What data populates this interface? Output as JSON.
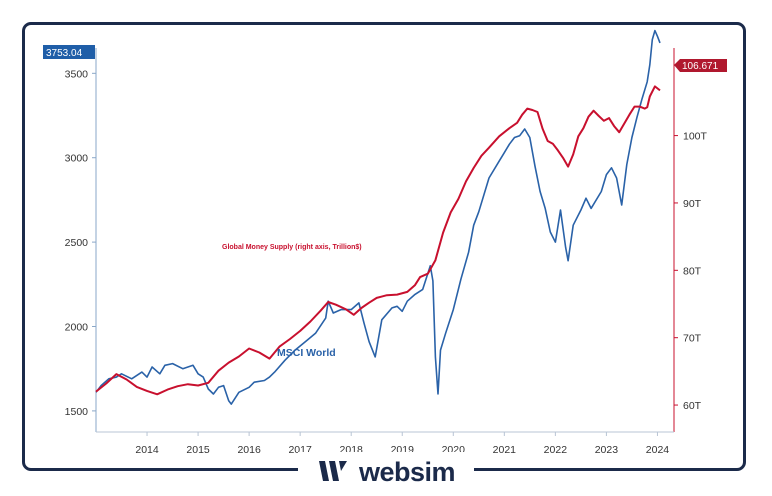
{
  "brand": {
    "name": "websim"
  },
  "chart_data": {
    "type": "line",
    "x_ticks": [
      "2014",
      "2015",
      "2016",
      "2017",
      "2018",
      "2019",
      "2020",
      "2021",
      "2022",
      "2023",
      "2024"
    ],
    "x_range": [
      2013.5,
      2024.55
    ],
    "left_axis": {
      "ticks": [
        "1500",
        "2000",
        "2500",
        "3000",
        "3500"
      ],
      "tick_values": [
        1500,
        2000,
        2500,
        3000,
        3500
      ],
      "range": [
        1375,
        3650
      ],
      "color": "#2a62a8"
    },
    "right_axis": {
      "ticks": [
        "60T",
        "70T",
        "80T",
        "90T",
        "100T"
      ],
      "tick_values": [
        60,
        70,
        80,
        90,
        100
      ],
      "range": [
        56,
        113
      ],
      "color": "#b0182e"
    },
    "current_values": {
      "msci": "3753.04",
      "money_supply": "106.671"
    },
    "annotations": {
      "money_supply": "Global Money Supply (right axis, Trillion$)",
      "msci": "MSCI World"
    },
    "series": [
      {
        "name": "MSCI World",
        "axis": "left",
        "color": "#2a62a8",
        "x": [
          2013.5,
          2013.6,
          2013.75,
          2013.9,
          2014.0,
          2014.2,
          2014.4,
          2014.5,
          2014.6,
          2014.75,
          2014.85,
          2015.0,
          2015.2,
          2015.4,
          2015.5,
          2015.6,
          2015.7,
          2015.8,
          2015.9,
          2016.0,
          2016.1,
          2016.15,
          2016.3,
          2016.5,
          2016.6,
          2016.8,
          2016.9,
          2017.0,
          2017.2,
          2017.4,
          2017.6,
          2017.8,
          2018.0,
          2018.05,
          2018.15,
          2018.3,
          2018.5,
          2018.65,
          2018.75,
          2018.85,
          2018.97,
          2019.1,
          2019.3,
          2019.4,
          2019.5,
          2019.6,
          2019.75,
          2019.9,
          2020.05,
          2020.1,
          2020.15,
          2020.2,
          2020.25,
          2020.35,
          2020.5,
          2020.65,
          2020.8,
          2020.9,
          2021.0,
          2021.2,
          2021.4,
          2021.5,
          2021.6,
          2021.7,
          2021.8,
          2021.9,
          2022.0,
          2022.1,
          2022.2,
          2022.3,
          2022.4,
          2022.5,
          2022.6,
          2022.7,
          2022.75,
          2022.85,
          2023.0,
          2023.1,
          2023.2,
          2023.4,
          2023.5,
          2023.6,
          2023.7,
          2023.8,
          2023.9,
          2024.0,
          2024.1,
          2024.2,
          2024.3,
          2024.35,
          2024.4,
          2024.45,
          2024.5,
          2024.55
        ],
        "y": [
          1610,
          1650,
          1690,
          1700,
          1720,
          1690,
          1730,
          1700,
          1760,
          1720,
          1770,
          1780,
          1750,
          1770,
          1720,
          1700,
          1630,
          1600,
          1640,
          1650,
          1560,
          1540,
          1610,
          1640,
          1670,
          1680,
          1700,
          1730,
          1800,
          1860,
          1910,
          1960,
          2050,
          2150,
          2080,
          2100,
          2100,
          2140,
          2020,
          1910,
          1820,
          2040,
          2110,
          2120,
          2090,
          2150,
          2190,
          2220,
          2360,
          2270,
          1820,
          1600,
          1860,
          1960,
          2100,
          2280,
          2440,
          2600,
          2680,
          2880,
          2980,
          3030,
          3080,
          3120,
          3130,
          3170,
          3120,
          2950,
          2800,
          2700,
          2560,
          2500,
          2690,
          2470,
          2390,
          2600,
          2690,
          2760,
          2700,
          2800,
          2900,
          2940,
          2880,
          2720,
          2960,
          3120,
          3240,
          3350,
          3450,
          3550,
          3700,
          3753,
          3720,
          3680
        ]
      },
      {
        "name": "Global Money Supply",
        "axis": "right",
        "color": "#c8102e",
        "x": [
          2013.5,
          2013.7,
          2013.9,
          2014.1,
          2014.3,
          2014.5,
          2014.7,
          2014.9,
          2015.1,
          2015.3,
          2015.5,
          2015.7,
          2015.9,
          2016.1,
          2016.3,
          2016.5,
          2016.7,
          2016.9,
          2017.1,
          2017.3,
          2017.5,
          2017.7,
          2017.9,
          2018.05,
          2018.2,
          2018.4,
          2018.55,
          2018.7,
          2018.85,
          2019.0,
          2019.2,
          2019.4,
          2019.6,
          2019.75,
          2019.85,
          2020.0,
          2020.15,
          2020.3,
          2020.45,
          2020.6,
          2020.75,
          2020.9,
          2021.05,
          2021.2,
          2021.4,
          2021.6,
          2021.75,
          2021.85,
          2021.95,
          2022.05,
          2022.15,
          2022.25,
          2022.35,
          2022.45,
          2022.55,
          2022.65,
          2022.75,
          2022.85,
          2022.95,
          2023.05,
          2023.15,
          2023.25,
          2023.35,
          2023.45,
          2023.55,
          2023.65,
          2023.75,
          2023.85,
          2023.95,
          2024.05,
          2024.15,
          2024.25,
          2024.3,
          2024.35,
          2024.45,
          2024.55
        ],
        "y": [
          62,
          63.2,
          64.6,
          63.8,
          62.7,
          62.1,
          61.6,
          62.3,
          62.8,
          63.1,
          62.9,
          63.3,
          65.1,
          66.3,
          67.2,
          68.4,
          67.8,
          66.9,
          68.7,
          69.8,
          71.0,
          72.4,
          74.0,
          75.3,
          74.9,
          74.2,
          73.4,
          74.4,
          75.2,
          75.9,
          76.3,
          76.4,
          76.8,
          77.8,
          79.0,
          79.5,
          81.5,
          85.6,
          88.6,
          90.6,
          93.2,
          95.2,
          97.0,
          98.2,
          99.9,
          101.1,
          101.9,
          103.1,
          104.0,
          103.8,
          103.5,
          101.0,
          99.2,
          98.8,
          97.8,
          96.7,
          95.4,
          97.2,
          99.9,
          101.1,
          102.8,
          103.7,
          102.9,
          102.2,
          102.6,
          101.4,
          100.5,
          101.8,
          103.1,
          104.3,
          104.3,
          104.0,
          104.2,
          105.8,
          107.3,
          106.7
        ]
      }
    ]
  }
}
